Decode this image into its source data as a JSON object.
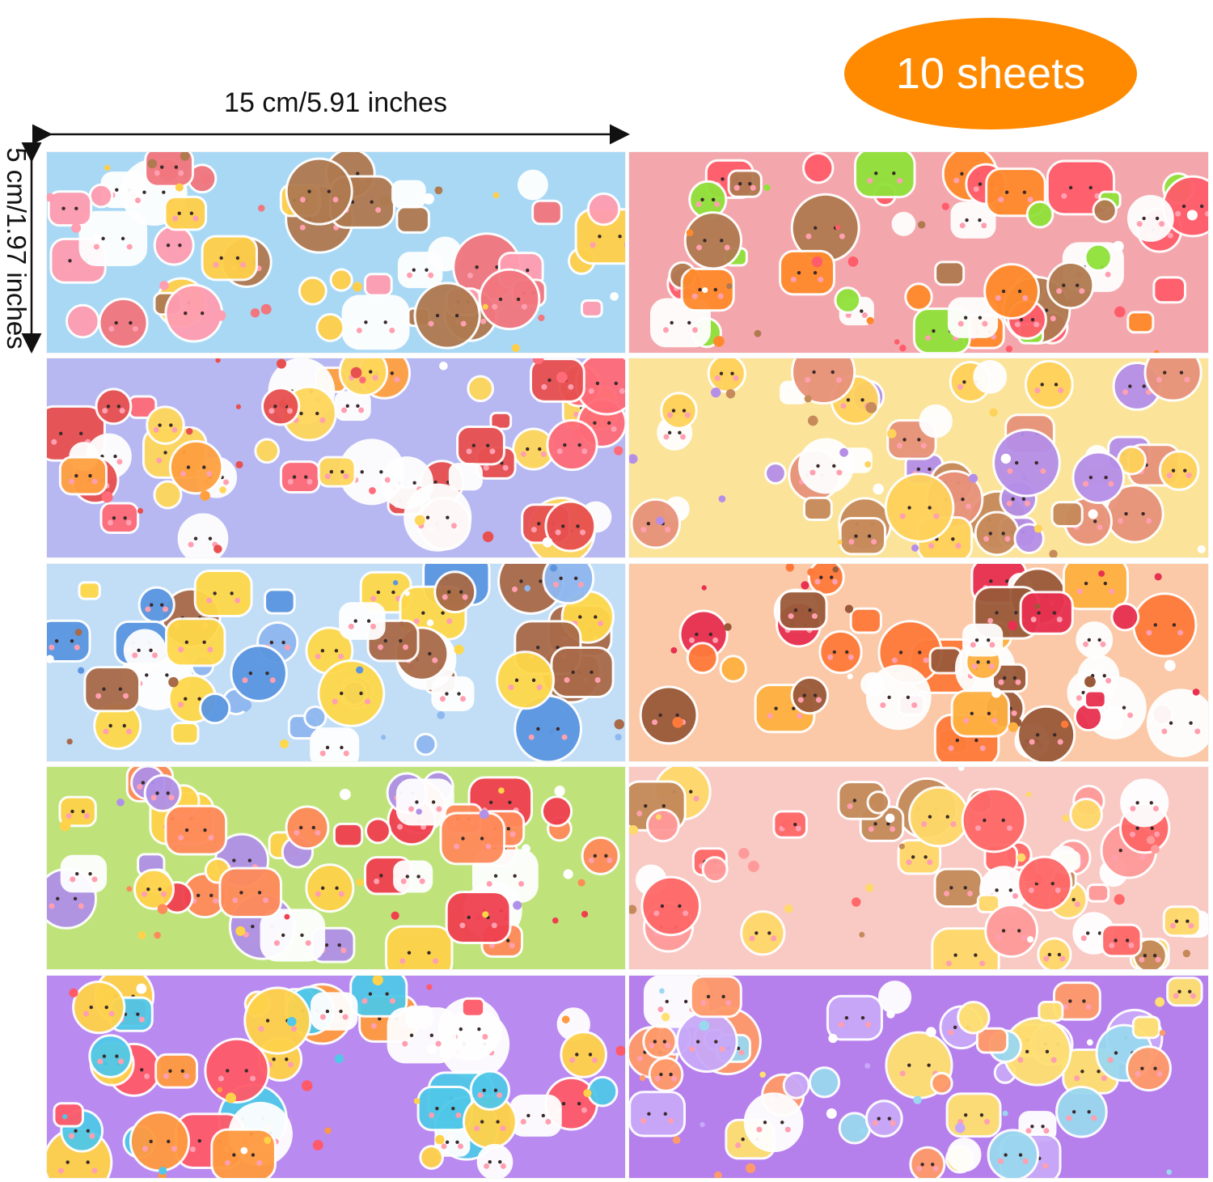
{
  "badge": {
    "text": "10 sheets",
    "color": "#ff8a00"
  },
  "dimensions": {
    "width_label": "15 cm/5.91 inches",
    "height_label": "5 cm/1.97 inches"
  },
  "sheets": [
    {
      "name": "sheet-1",
      "background": "#a9d8f5",
      "palette": [
        "#f2767e",
        "#ffcf4a",
        "#ffffff",
        "#b07a50",
        "#ff9db1"
      ]
    },
    {
      "name": "sheet-2",
      "background": "#f3a7ad",
      "palette": [
        "#ff8a2c",
        "#8fe23a",
        "#ffffff",
        "#ff5d6b",
        "#b07a50"
      ]
    },
    {
      "name": "sheet-3",
      "background": "#b7b8f2",
      "palette": [
        "#ff6b78",
        "#ffd75a",
        "#ffffff",
        "#ffa040",
        "#e85050"
      ]
    },
    {
      "name": "sheet-4",
      "background": "#fbe49a",
      "palette": [
        "#b58ee8",
        "#e8927a",
        "#ffffff",
        "#ffd25a",
        "#c78a5a"
      ]
    },
    {
      "name": "sheet-5",
      "background": "#c2ddf6",
      "palette": [
        "#ffd84a",
        "#8fb8f0",
        "#ffffff",
        "#a86a48",
        "#5a96e0"
      ]
    },
    {
      "name": "sheet-6",
      "background": "#fbc9a8",
      "palette": [
        "#ff7a3a",
        "#e83050",
        "#ffffff",
        "#9a5a3a",
        "#ffb040"
      ]
    },
    {
      "name": "sheet-7",
      "background": "#bfe37a",
      "palette": [
        "#f04050",
        "#ffffff",
        "#b090e8",
        "#ff8a5a",
        "#ffd24a"
      ]
    },
    {
      "name": "sheet-8",
      "background": "#f9c9c4",
      "palette": [
        "#ff6868",
        "#ffffff",
        "#c48a5a",
        "#ffd96a",
        "#ff9a9a"
      ]
    },
    {
      "name": "sheet-9",
      "background": "#b98af0",
      "palette": [
        "#ff5a6a",
        "#ffd24a",
        "#ffffff",
        "#ff9a40",
        "#50c8e8"
      ]
    },
    {
      "name": "sheet-10",
      "background": "#b680ec",
      "palette": [
        "#ffffff",
        "#ffe070",
        "#9ad8f0",
        "#ff9a6a",
        "#c8a8f8"
      ]
    }
  ]
}
